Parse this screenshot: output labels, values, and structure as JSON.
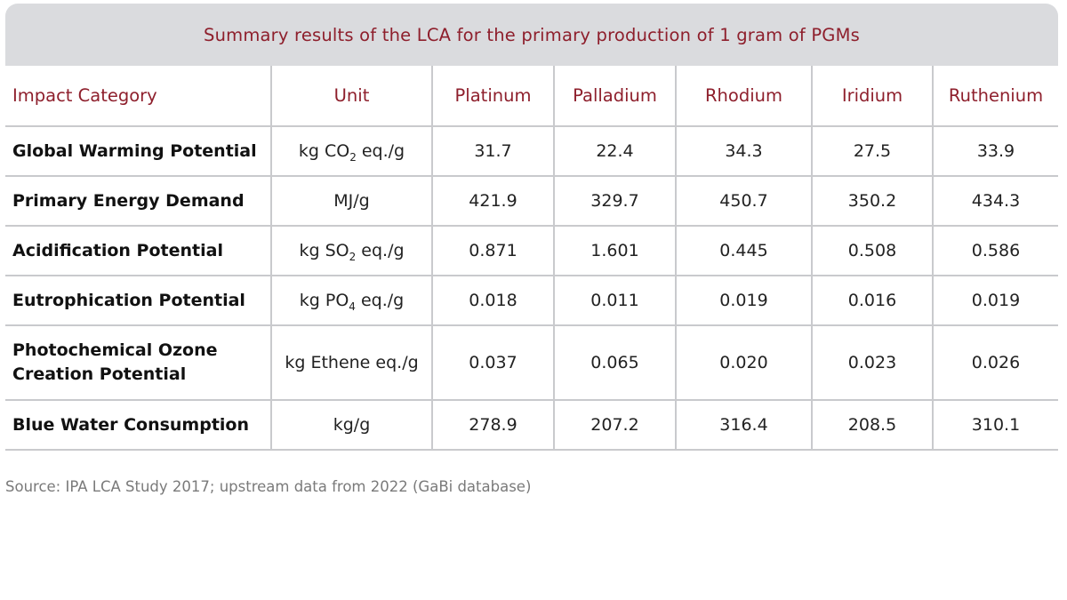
{
  "title": "Summary results of the LCA for the primary production of 1 gram of PGMs",
  "headers": [
    "Impact Category",
    "Unit",
    "Platinum",
    "Palladium",
    "Rhodium",
    "Iridium",
    "Ruthenium"
  ],
  "rows": [
    {
      "category": "Global Warming Potential",
      "unit": {
        "pre": "kg CO",
        "sub": "2",
        "post": " eq./g"
      },
      "values": [
        "31.7",
        "22.4",
        "34.3",
        "27.5",
        "33.9"
      ]
    },
    {
      "category": "Primary Energy Demand",
      "unit": {
        "pre": "MJ/g",
        "sub": "",
        "post": ""
      },
      "values": [
        "421.9",
        "329.7",
        "450.7",
        "350.2",
        "434.3"
      ]
    },
    {
      "category": "Acidification Potential",
      "unit": {
        "pre": "kg SO",
        "sub": "2",
        "post": " eq./g"
      },
      "values": [
        "0.871",
        "1.601",
        "0.445",
        "0.508",
        "0.586"
      ]
    },
    {
      "category": "Eutrophication Potential",
      "unit": {
        "pre": "kg PO",
        "sub": "4",
        "post": " eq./g"
      },
      "values": [
        "0.018",
        "0.011",
        "0.019",
        "0.016",
        "0.019"
      ]
    },
    {
      "category": "Photochemical Ozone Creation Potential",
      "unit": {
        "pre": "kg Ethene eq./g",
        "sub": "",
        "post": ""
      },
      "values": [
        "0.037",
        "0.065",
        "0.020",
        "0.023",
        "0.026"
      ]
    },
    {
      "category": "Blue Water Consumption",
      "unit": {
        "pre": "kg/g",
        "sub": "",
        "post": ""
      },
      "values": [
        "278.9",
        "207.2",
        "316.4",
        "208.5",
        "310.1"
      ]
    }
  ],
  "source": "Source: IPA LCA Study 2017; upstream data from 2022 (GaBi database)",
  "colors": {
    "accent": "#8e1f2c",
    "title_bar": "#dadbde",
    "grid": "#c9cacd"
  }
}
